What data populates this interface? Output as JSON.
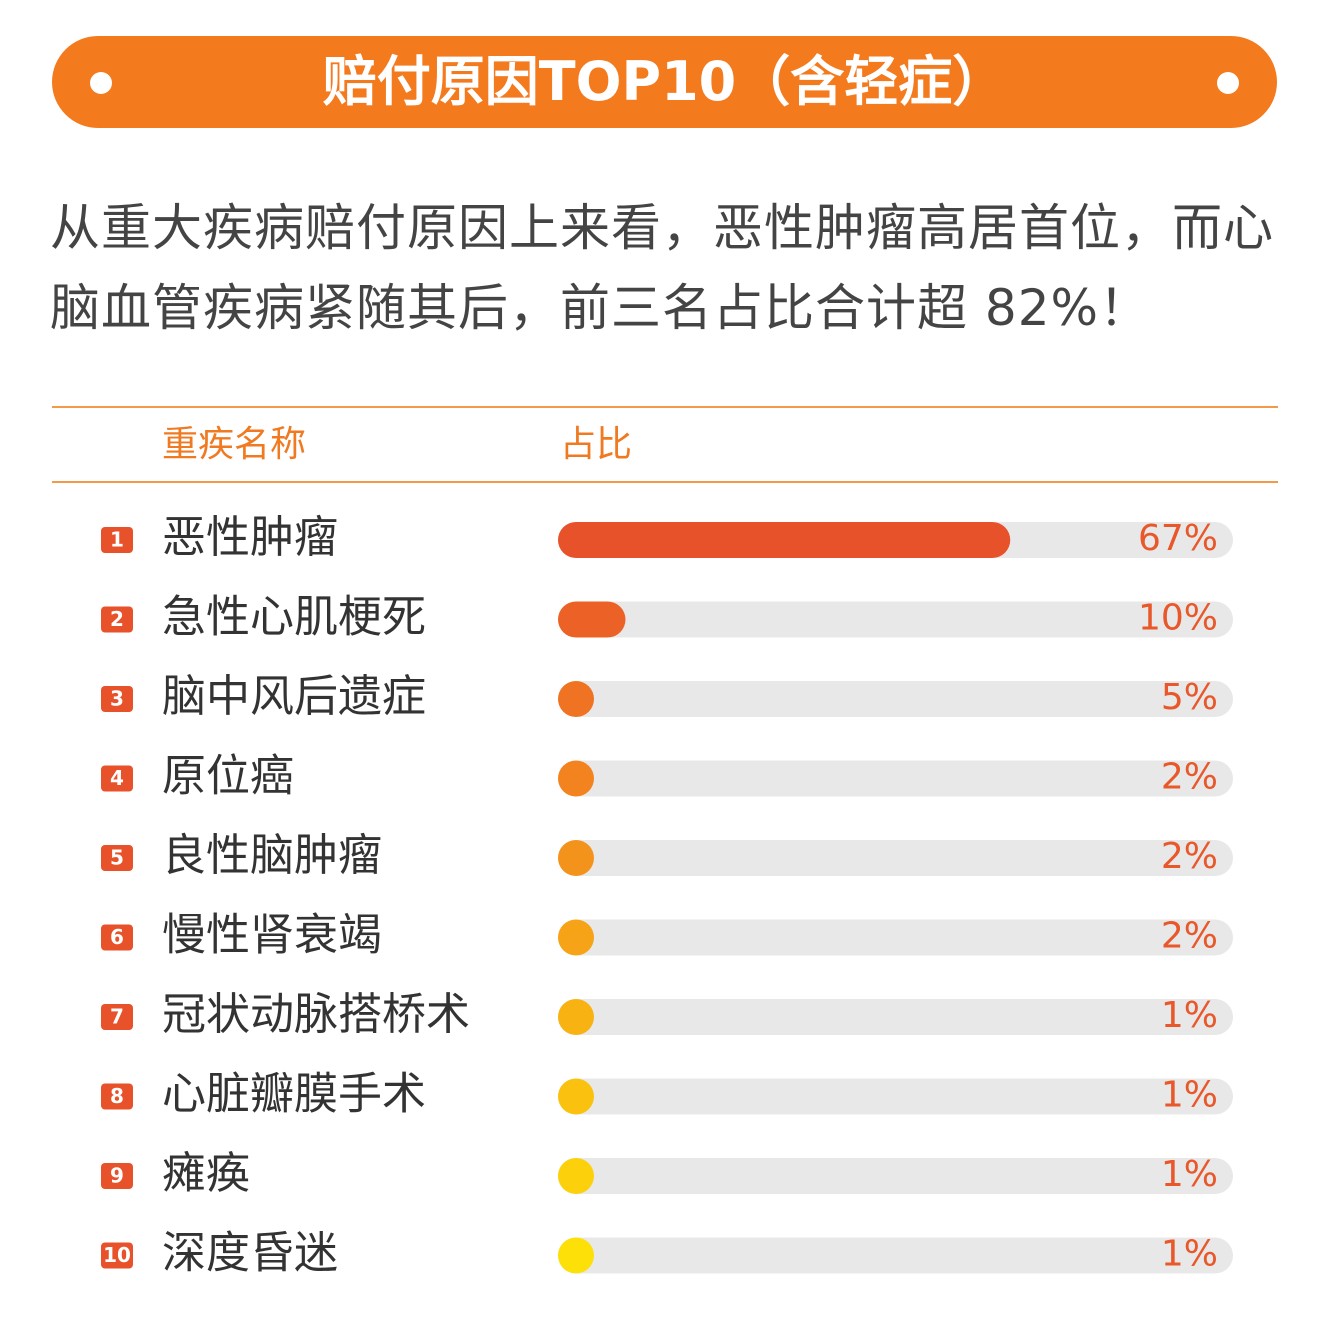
{
  "title": "赔付原因TOP10（含轻症）",
  "description": "从重大疾病赔付原因上来看，恶性肿瘤高居首位，而心脑血管疾病紧随其后，前三名占比合计超 82%！",
  "table_header": [
    "重疾名称",
    "占比"
  ],
  "chart_data": {
    "type": "bar",
    "orientation": "horizontal",
    "ranks": [
      1,
      2,
      3,
      4,
      5,
      6,
      7,
      8,
      9,
      10
    ],
    "categories": [
      "恶性肿瘤",
      "急性心肌梗死",
      "脑中风后遗症",
      "原位癌",
      "良性脑肿瘤",
      "慢性肾衰竭",
      "冠状动脉搭桥术",
      "心脏瓣膜手术",
      "瘫痪",
      "深度昏迷"
    ],
    "values": [
      67,
      10,
      5,
      2,
      2,
      2,
      1,
      1,
      1,
      1
    ],
    "value_labels": [
      "67%",
      "10%",
      "5%",
      "2%",
      "2%",
      "2%",
      "1%",
      "1%",
      "1%",
      "1%"
    ],
    "colors": [
      "#e8522a",
      "#ec6226",
      "#ef7322",
      "#f2831f",
      "#f4931b",
      "#f6a317",
      "#f8b313",
      "#fac20f",
      "#fcd10b",
      "#fde008"
    ],
    "xlim": [
      0,
      100
    ]
  }
}
